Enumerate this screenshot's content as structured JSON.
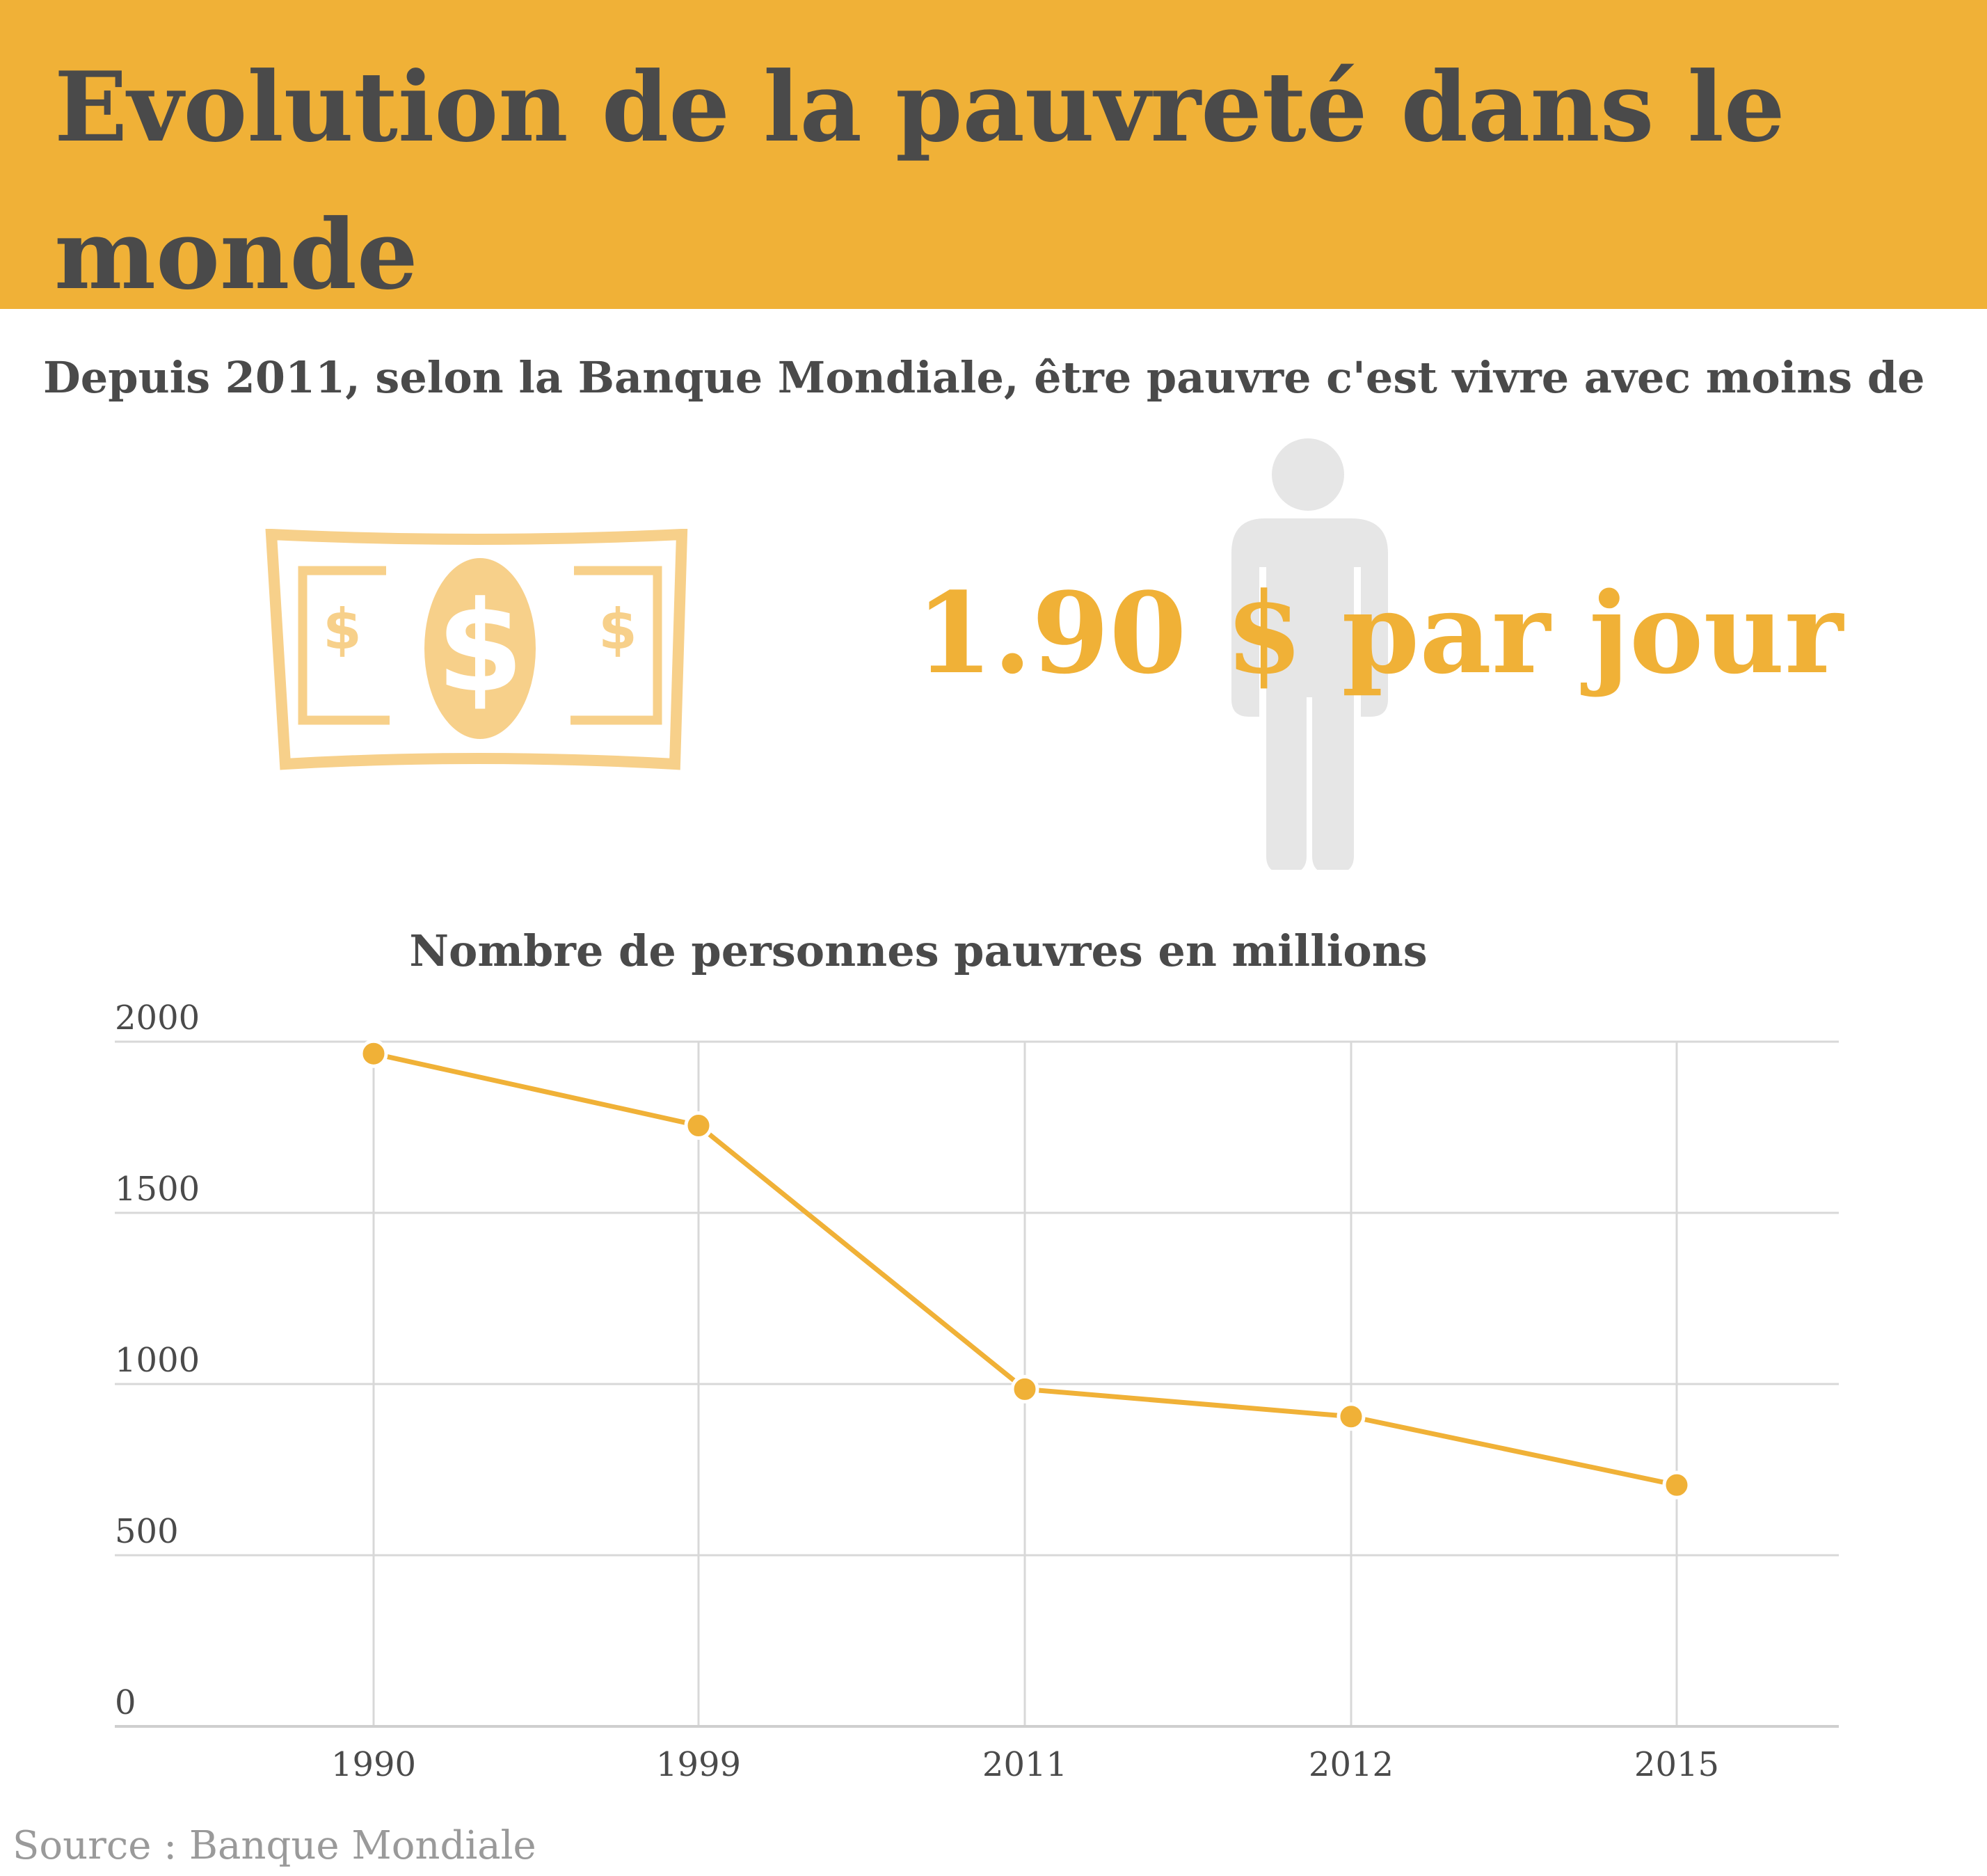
{
  "header": {
    "title": "Evolution de la pauvreté dans le monde",
    "subtitle": "Depuis 2011, selon la Banque Mondiale, être pauvre c'est vivre avec moins de"
  },
  "rate_text": "1.90 $ par jour",
  "icons": {
    "banknote": "dollar-banknote-icon",
    "person": "person-silhouette-icon"
  },
  "colors": {
    "accent": "#f0b137",
    "accent_light": "#f7d08a",
    "text": "#4a4a4a",
    "grid": "#d8d8d8",
    "source": "#9a9a9a",
    "person": "#e6e6e6"
  },
  "chart_data": {
    "type": "line",
    "title": "Nombre de personnes pauvres en millions",
    "categories": [
      "1990",
      "1999",
      "2011",
      "2012",
      "2015"
    ],
    "series": [
      {
        "name": "Nombre de personnes pauvres",
        "values": [
          1965,
          1755,
          985,
          905,
          705
        ]
      }
    ],
    "ylim": [
      0,
      2000
    ],
    "yticks": [
      0,
      500,
      1000,
      1500,
      2000
    ],
    "grid": true,
    "xlabel": "",
    "ylabel": ""
  },
  "source": "Source : Banque Mondiale"
}
